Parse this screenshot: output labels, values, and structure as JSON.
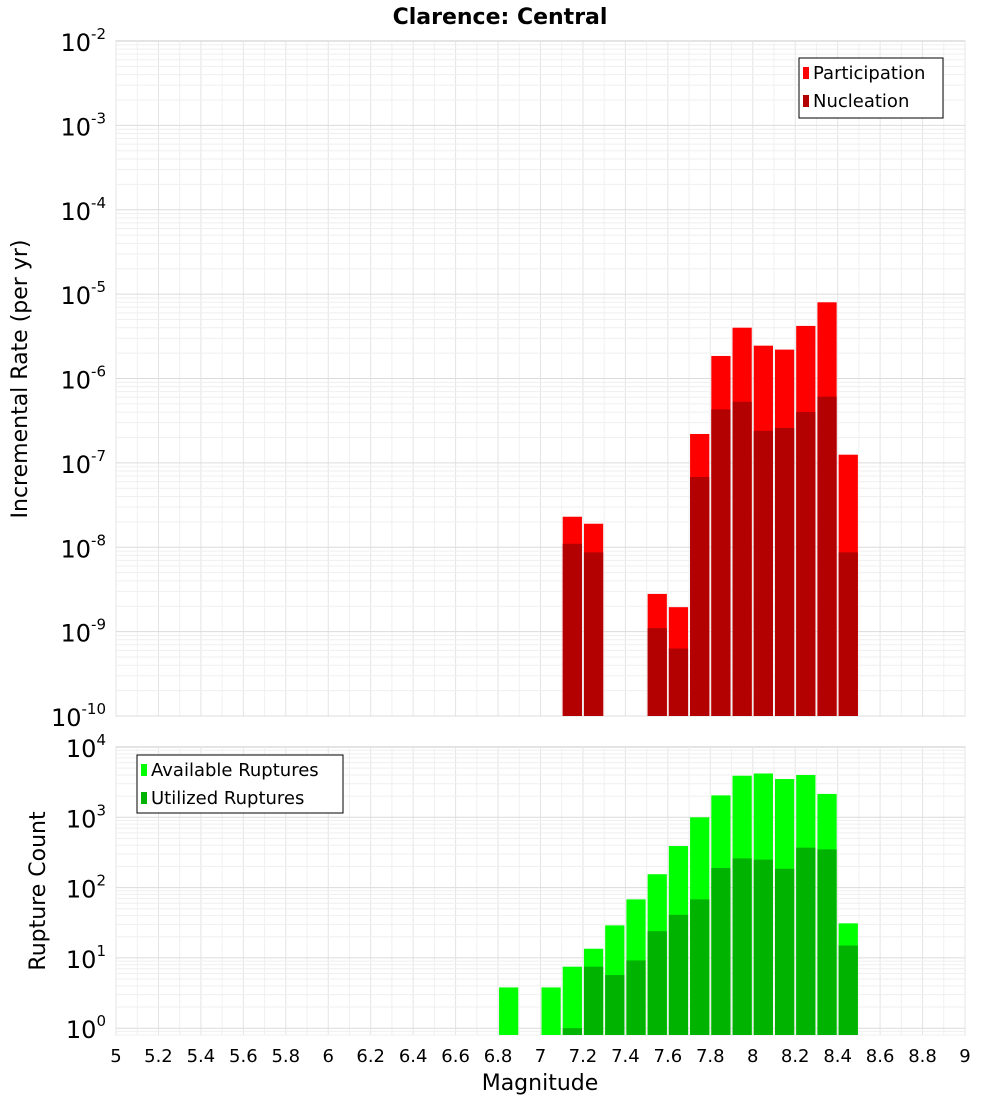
{
  "chart_data": {
    "title": "Clarence: Central",
    "xlabel": "Magnitude",
    "xlim": [
      5,
      9
    ],
    "xticks": [
      "5",
      "5.2",
      "5.4",
      "5.6",
      "5.8",
      "6",
      "6.2",
      "6.4",
      "6.6",
      "6.8",
      "7",
      "7.2",
      "7.4",
      "7.6",
      "7.8",
      "8",
      "8.2",
      "8.4",
      "8.6",
      "8.8",
      "9"
    ],
    "grid": true,
    "panels": [
      {
        "type": "bar",
        "ylabel": "Incremental Rate (per yr)",
        "yscale": "log",
        "ylim": [
          1e-10,
          0.01
        ],
        "ytick_base": "10",
        "ytick_exponents": [
          "-10",
          "-9",
          "-8",
          "-7",
          "-6",
          "-5",
          "-4",
          "-3",
          "-2"
        ],
        "legend_position": "top-right",
        "x": [
          7.15,
          7.25,
          7.55,
          7.65,
          7.75,
          7.85,
          7.95,
          8.05,
          8.15,
          8.25,
          8.35,
          8.45
        ],
        "series": [
          {
            "name": "Participation",
            "color": "#ff0000",
            "values": [
              2.3e-08,
              1.9e-08,
              2.8e-09,
              1.95e-09,
              2.2e-07,
              1.85e-06,
              4e-06,
              2.45e-06,
              2.2e-06,
              4.2e-06,
              8e-06,
              1.25e-07
            ]
          },
          {
            "name": "Nucleation",
            "color": "#b30000",
            "values": [
              1.1e-08,
              8.7e-09,
              1.1e-09,
              6.3e-10,
              6.8e-08,
              4.3e-07,
              5.3e-07,
              2.4e-07,
              2.6e-07,
              4e-07,
              6.1e-07,
              8.7e-09
            ]
          }
        ]
      },
      {
        "type": "bar",
        "ylabel": "Rupture Count",
        "yscale": "log",
        "ylim": [
          0.8,
          10000
        ],
        "ytick_base": "10",
        "ytick_exponents": [
          "0",
          "1",
          "2",
          "3",
          "4"
        ],
        "legend_position": "top-left",
        "x": [
          6.85,
          7.05,
          7.15,
          7.25,
          7.35,
          7.45,
          7.55,
          7.65,
          7.75,
          7.85,
          7.95,
          8.05,
          8.15,
          8.25,
          8.35,
          8.45
        ],
        "series": [
          {
            "name": "Available Ruptures",
            "color": "#00ff00",
            "values": [
              3.8,
              3.8,
              7.5,
              13.5,
              29,
              68,
              155,
              390,
              1000,
              2050,
              3900,
              4200,
              3500,
              4000,
              2150,
              31
            ]
          },
          {
            "name": "Utilized Ruptures",
            "color": "#00b300",
            "values": [
              null,
              null,
              1.0,
              7.5,
              5.7,
              9.2,
              24,
              41,
              68,
              190,
              260,
              250,
              185,
              370,
              350,
              15
            ]
          }
        ]
      }
    ]
  }
}
